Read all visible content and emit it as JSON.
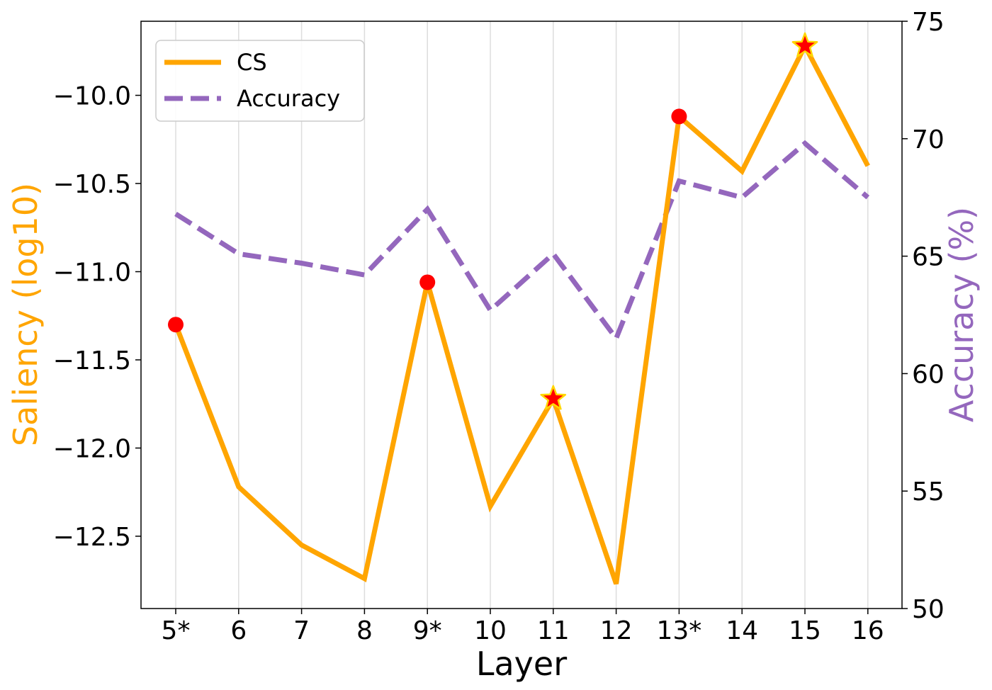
{
  "chart_data": {
    "type": "line",
    "categories": [
      "5*",
      "6",
      "7",
      "8",
      "9*",
      "10",
      "11",
      "12",
      "13*",
      "14",
      "15",
      "16"
    ],
    "xlabel": "Layer",
    "y_left": {
      "label": "Saliency (log10)",
      "color": "#FFA500",
      "ylim": [
        -12.91,
        -9.58
      ],
      "ticks": [
        -10.0,
        -10.5,
        -11.0,
        -11.5,
        -12.0,
        -12.5
      ],
      "tick_labels": [
        "−10.0",
        "−10.5",
        "−11.0",
        "−11.5",
        "−12.0",
        "−12.5"
      ]
    },
    "y_right": {
      "label": "Accuracy (%)",
      "color": "#9467BD",
      "ylim": [
        50,
        75
      ],
      "ticks": [
        50,
        55,
        60,
        65,
        70,
        75
      ],
      "tick_labels": [
        "50",
        "55",
        "60",
        "65",
        "70",
        "75"
      ]
    },
    "series": [
      {
        "name": "CS",
        "axis": "left",
        "style": "solid",
        "color": "#FFA500",
        "values": [
          -11.3,
          -12.22,
          -12.55,
          -12.74,
          -11.06,
          -12.33,
          -11.72,
          -12.77,
          -10.12,
          -10.43,
          -9.72,
          -10.4
        ]
      },
      {
        "name": "Accuracy",
        "axis": "right",
        "style": "dashed",
        "color": "#9467BD",
        "values": [
          66.8,
          65.1,
          64.7,
          64.2,
          67.0,
          62.7,
          65.1,
          61.5,
          68.2,
          67.5,
          69.8,
          67.5
        ]
      }
    ],
    "markers": {
      "circle_indices": [
        0,
        4,
        8
      ],
      "star_indices": [
        6,
        10
      ],
      "circle_color": "#FF0000",
      "star_color": "#FF0000",
      "star_edge_color": "#FFD700"
    },
    "grid": {
      "vertical": true,
      "horizontal": false
    },
    "legend": {
      "position": "top-left",
      "entries": [
        "CS",
        "Accuracy"
      ]
    }
  }
}
